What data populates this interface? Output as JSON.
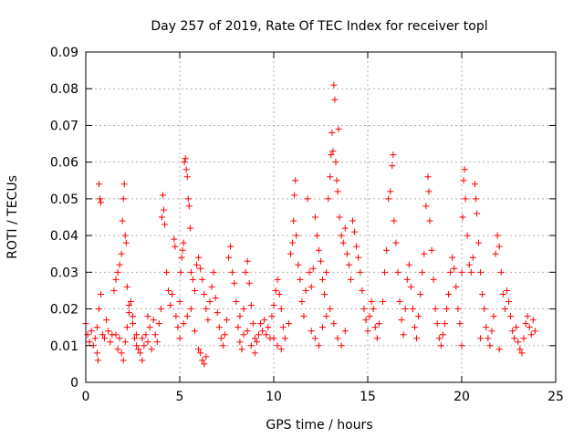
{
  "chart_data": {
    "type": "scatter",
    "title": "Day 257 of 2019, Rate Of TEC Index for receiver topl",
    "xlabel": "GPS time / hours",
    "ylabel": "ROTI / TECUs",
    "xlim": [
      0,
      25
    ],
    "ylim": [
      0,
      0.09
    ],
    "x_ticks": [
      0,
      5,
      10,
      15,
      20,
      25
    ],
    "x_tick_labels": [
      "0",
      "5",
      "10",
      "15",
      "20",
      "25"
    ],
    "y_ticks": [
      0,
      0.01,
      0.02,
      0.03,
      0.04,
      0.05,
      0.06,
      0.07,
      0.08,
      0.09
    ],
    "y_tick_labels": [
      "0",
      "0.01",
      "0.02",
      "0.03",
      "0.04",
      "0.05",
      "0.06",
      "0.07",
      "0.08",
      "0.09"
    ],
    "grid": true,
    "marker": "+",
    "color": "#ff0000",
    "series": [
      {
        "name": "ROTI",
        "points": [
          [
            0.0,
            0.016
          ],
          [
            0.1,
            0.013
          ],
          [
            0.2,
            0.011
          ],
          [
            0.3,
            0.014
          ],
          [
            0.4,
            0.01
          ],
          [
            0.5,
            0.012
          ],
          [
            0.6,
            0.015
          ],
          [
            0.7,
            0.02
          ],
          [
            0.8,
            0.024
          ],
          [
            0.9,
            0.013
          ],
          [
            0.7,
            0.054
          ],
          [
            0.75,
            0.05
          ],
          [
            0.8,
            0.049
          ],
          [
            0.6,
            0.008
          ],
          [
            0.65,
            0.006
          ],
          [
            1.0,
            0.012
          ],
          [
            1.1,
            0.017
          ],
          [
            1.2,
            0.014
          ],
          [
            1.3,
            0.011
          ],
          [
            1.4,
            0.013
          ],
          [
            1.5,
            0.025
          ],
          [
            1.6,
            0.028
          ],
          [
            1.7,
            0.03
          ],
          [
            1.8,
            0.032
          ],
          [
            1.9,
            0.035
          ],
          [
            1.95,
            0.044
          ],
          [
            2.0,
            0.05
          ],
          [
            2.05,
            0.054
          ],
          [
            2.1,
            0.04
          ],
          [
            2.15,
            0.038
          ],
          [
            1.6,
            0.013
          ],
          [
            1.7,
            0.009
          ],
          [
            1.8,
            0.012
          ],
          [
            1.9,
            0.008
          ],
          [
            2.0,
            0.006
          ],
          [
            2.1,
            0.011
          ],
          [
            2.2,
            0.015
          ],
          [
            2.3,
            0.019
          ],
          [
            2.4,
            0.022
          ],
          [
            2.5,
            0.018
          ],
          [
            2.6,
            0.012
          ],
          [
            2.7,
            0.01
          ],
          [
            2.8,
            0.009
          ],
          [
            2.9,
            0.008
          ],
          [
            3.0,
            0.006
          ],
          [
            3.1,
            0.01
          ],
          [
            3.2,
            0.013
          ],
          [
            3.3,
            0.011
          ],
          [
            3.4,
            0.015
          ],
          [
            3.5,
            0.009
          ],
          [
            2.2,
            0.026
          ],
          [
            2.3,
            0.021
          ],
          [
            2.5,
            0.016
          ],
          [
            2.7,
            0.013
          ],
          [
            3.0,
            0.012
          ],
          [
            3.3,
            0.018
          ],
          [
            3.6,
            0.017
          ],
          [
            3.7,
            0.013
          ],
          [
            3.8,
            0.011
          ],
          [
            3.9,
            0.016
          ],
          [
            4.0,
            0.02
          ],
          [
            4.05,
            0.045
          ],
          [
            4.1,
            0.051
          ],
          [
            4.15,
            0.047
          ],
          [
            4.2,
            0.043
          ],
          [
            4.3,
            0.03
          ],
          [
            4.4,
            0.025
          ],
          [
            4.5,
            0.021
          ],
          [
            4.6,
            0.024
          ],
          [
            4.7,
            0.039
          ],
          [
            4.75,
            0.037
          ],
          [
            4.8,
            0.018
          ],
          [
            4.9,
            0.015
          ],
          [
            5.0,
            0.022
          ],
          [
            5.05,
            0.03
          ],
          [
            5.1,
            0.034
          ],
          [
            5.15,
            0.036
          ],
          [
            5.2,
            0.038
          ],
          [
            5.25,
            0.06
          ],
          [
            5.3,
            0.061
          ],
          [
            5.35,
            0.058
          ],
          [
            5.4,
            0.056
          ],
          [
            5.45,
            0.05
          ],
          [
            5.5,
            0.048
          ],
          [
            5.55,
            0.042
          ],
          [
            5.6,
            0.03
          ],
          [
            5.7,
            0.028
          ],
          [
            5.8,
            0.025
          ],
          [
            5.9,
            0.032
          ],
          [
            6.0,
            0.034
          ],
          [
            5.0,
            0.012
          ],
          [
            5.2,
            0.016
          ],
          [
            5.4,
            0.018
          ],
          [
            5.6,
            0.02
          ],
          [
            5.8,
            0.014
          ],
          [
            6.0,
            0.009
          ],
          [
            6.1,
            0.008
          ],
          [
            6.2,
            0.006
          ],
          [
            6.3,
            0.005
          ],
          [
            6.4,
            0.007
          ],
          [
            6.1,
            0.031
          ],
          [
            6.2,
            0.028
          ],
          [
            6.3,
            0.024
          ],
          [
            6.4,
            0.02
          ],
          [
            6.5,
            0.017
          ],
          [
            6.6,
            0.022
          ],
          [
            6.7,
            0.026
          ],
          [
            6.8,
            0.03
          ],
          [
            6.9,
            0.023
          ],
          [
            7.0,
            0.019
          ],
          [
            7.1,
            0.015
          ],
          [
            7.2,
            0.012
          ],
          [
            7.3,
            0.01
          ],
          [
            7.4,
            0.013
          ],
          [
            7.5,
            0.017
          ],
          [
            7.6,
            0.034
          ],
          [
            7.7,
            0.037
          ],
          [
            7.8,
            0.03
          ],
          [
            7.9,
            0.027
          ],
          [
            8.0,
            0.022
          ],
          [
            8.1,
            0.015
          ],
          [
            8.2,
            0.011
          ],
          [
            8.3,
            0.009
          ],
          [
            8.4,
            0.013
          ],
          [
            8.5,
            0.03
          ],
          [
            8.6,
            0.033
          ],
          [
            8.7,
            0.027
          ],
          [
            8.8,
            0.021
          ],
          [
            8.9,
            0.016
          ],
          [
            9.0,
            0.012
          ],
          [
            8.2,
            0.018
          ],
          [
            8.4,
            0.02
          ],
          [
            8.6,
            0.014
          ],
          [
            8.8,
            0.01
          ],
          [
            9.0,
            0.008
          ],
          [
            9.1,
            0.011
          ],
          [
            9.2,
            0.013
          ],
          [
            9.3,
            0.016
          ],
          [
            9.4,
            0.014
          ],
          [
            9.5,
            0.017
          ],
          [
            9.6,
            0.013
          ],
          [
            9.7,
            0.015
          ],
          [
            9.8,
            0.012
          ],
          [
            9.9,
            0.018
          ],
          [
            10.0,
            0.021
          ],
          [
            10.1,
            0.025
          ],
          [
            10.2,
            0.028
          ],
          [
            10.3,
            0.024
          ],
          [
            10.4,
            0.02
          ],
          [
            10.5,
            0.015
          ],
          [
            10.0,
            0.012
          ],
          [
            10.2,
            0.01
          ],
          [
            10.4,
            0.009
          ],
          [
            10.6,
            0.012
          ],
          [
            10.8,
            0.016
          ],
          [
            10.9,
            0.035
          ],
          [
            11.0,
            0.038
          ],
          [
            11.05,
            0.044
          ],
          [
            11.1,
            0.051
          ],
          [
            11.15,
            0.055
          ],
          [
            11.2,
            0.04
          ],
          [
            11.3,
            0.032
          ],
          [
            11.4,
            0.028
          ],
          [
            11.5,
            0.022
          ],
          [
            11.6,
            0.018
          ],
          [
            11.7,
            0.025
          ],
          [
            11.8,
            0.05
          ],
          [
            11.9,
            0.03
          ],
          [
            12.0,
            0.026
          ],
          [
            12.1,
            0.031
          ],
          [
            12.2,
            0.045
          ],
          [
            12.3,
            0.04
          ],
          [
            12.4,
            0.036
          ],
          [
            12.5,
            0.033
          ],
          [
            12.6,
            0.028
          ],
          [
            12.7,
            0.024
          ],
          [
            12.8,
            0.03
          ],
          [
            12.9,
            0.05
          ],
          [
            13.0,
            0.056
          ],
          [
            13.05,
            0.062
          ],
          [
            13.1,
            0.068
          ],
          [
            13.15,
            0.063
          ],
          [
            13.2,
            0.081
          ],
          [
            13.25,
            0.077
          ],
          [
            13.3,
            0.06
          ],
          [
            13.35,
            0.055
          ],
          [
            13.4,
            0.052
          ],
          [
            13.45,
            0.069
          ],
          [
            13.5,
            0.045
          ],
          [
            13.6,
            0.04
          ],
          [
            12.0,
            0.014
          ],
          [
            12.2,
            0.012
          ],
          [
            12.4,
            0.01
          ],
          [
            12.6,
            0.015
          ],
          [
            12.8,
            0.018
          ],
          [
            13.0,
            0.02
          ],
          [
            13.2,
            0.016
          ],
          [
            13.4,
            0.012
          ],
          [
            13.6,
            0.01
          ],
          [
            13.8,
            0.014
          ],
          [
            13.7,
            0.038
          ],
          [
            13.8,
            0.042
          ],
          [
            13.9,
            0.035
          ],
          [
            14.0,
            0.032
          ],
          [
            14.1,
            0.028
          ],
          [
            14.2,
            0.044
          ],
          [
            14.3,
            0.041
          ],
          [
            14.4,
            0.037
          ],
          [
            14.5,
            0.034
          ],
          [
            14.6,
            0.03
          ],
          [
            14.7,
            0.025
          ],
          [
            14.8,
            0.02
          ],
          [
            14.9,
            0.017
          ],
          [
            15.0,
            0.014
          ],
          [
            15.1,
            0.018
          ],
          [
            15.2,
            0.022
          ],
          [
            15.3,
            0.02
          ],
          [
            15.4,
            0.015
          ],
          [
            15.5,
            0.012
          ],
          [
            15.6,
            0.016
          ],
          [
            15.8,
            0.022
          ],
          [
            15.9,
            0.03
          ],
          [
            16.0,
            0.036
          ],
          [
            16.1,
            0.05
          ],
          [
            16.2,
            0.052
          ],
          [
            16.3,
            0.059
          ],
          [
            16.35,
            0.062
          ],
          [
            16.4,
            0.044
          ],
          [
            16.5,
            0.038
          ],
          [
            16.6,
            0.03
          ],
          [
            16.7,
            0.022
          ],
          [
            16.8,
            0.017
          ],
          [
            16.9,
            0.013
          ],
          [
            17.0,
            0.02
          ],
          [
            17.1,
            0.028
          ],
          [
            17.2,
            0.032
          ],
          [
            17.3,
            0.026
          ],
          [
            17.4,
            0.02
          ],
          [
            17.5,
            0.015
          ],
          [
            17.6,
            0.012
          ],
          [
            17.7,
            0.018
          ],
          [
            17.8,
            0.024
          ],
          [
            17.9,
            0.03
          ],
          [
            18.0,
            0.035
          ],
          [
            18.1,
            0.048
          ],
          [
            18.2,
            0.056
          ],
          [
            18.25,
            0.052
          ],
          [
            18.3,
            0.044
          ],
          [
            18.4,
            0.036
          ],
          [
            18.5,
            0.028
          ],
          [
            18.6,
            0.02
          ],
          [
            18.7,
            0.016
          ],
          [
            18.8,
            0.012
          ],
          [
            18.9,
            0.01
          ],
          [
            19.0,
            0.013
          ],
          [
            19.1,
            0.016
          ],
          [
            19.2,
            0.02
          ],
          [
            19.3,
            0.024
          ],
          [
            19.4,
            0.03
          ],
          [
            19.5,
            0.034
          ],
          [
            19.6,
            0.031
          ],
          [
            19.7,
            0.026
          ],
          [
            19.8,
            0.02
          ],
          [
            19.9,
            0.016
          ],
          [
            20.0,
            0.03
          ],
          [
            20.05,
            0.045
          ],
          [
            20.1,
            0.055
          ],
          [
            20.15,
            0.058
          ],
          [
            20.2,
            0.05
          ],
          [
            20.3,
            0.04
          ],
          [
            20.4,
            0.032
          ],
          [
            20.5,
            0.03
          ],
          [
            20.6,
            0.034
          ],
          [
            20.7,
            0.054
          ],
          [
            20.75,
            0.05
          ],
          [
            20.8,
            0.046
          ],
          [
            20.9,
            0.038
          ],
          [
            21.0,
            0.03
          ],
          [
            21.1,
            0.024
          ],
          [
            21.2,
            0.02
          ],
          [
            21.3,
            0.015
          ],
          [
            21.4,
            0.012
          ],
          [
            21.5,
            0.01
          ],
          [
            21.6,
            0.014
          ],
          [
            21.7,
            0.018
          ],
          [
            21.8,
            0.035
          ],
          [
            21.9,
            0.04
          ],
          [
            22.0,
            0.037
          ],
          [
            22.1,
            0.03
          ],
          [
            22.2,
            0.024
          ],
          [
            22.3,
            0.02
          ],
          [
            22.4,
            0.025
          ],
          [
            22.5,
            0.022
          ],
          [
            22.6,
            0.018
          ],
          [
            22.7,
            0.014
          ],
          [
            22.8,
            0.012
          ],
          [
            22.9,
            0.015
          ],
          [
            23.0,
            0.011
          ],
          [
            23.1,
            0.009
          ],
          [
            23.2,
            0.008
          ],
          [
            23.3,
            0.012
          ],
          [
            23.4,
            0.016
          ],
          [
            23.5,
            0.018
          ],
          [
            23.6,
            0.015
          ],
          [
            23.7,
            0.013
          ],
          [
            23.8,
            0.017
          ],
          [
            23.9,
            0.014
          ],
          [
            20.0,
            0.01
          ],
          [
            21.0,
            0.012
          ],
          [
            22.0,
            0.009
          ]
        ]
      }
    ]
  }
}
